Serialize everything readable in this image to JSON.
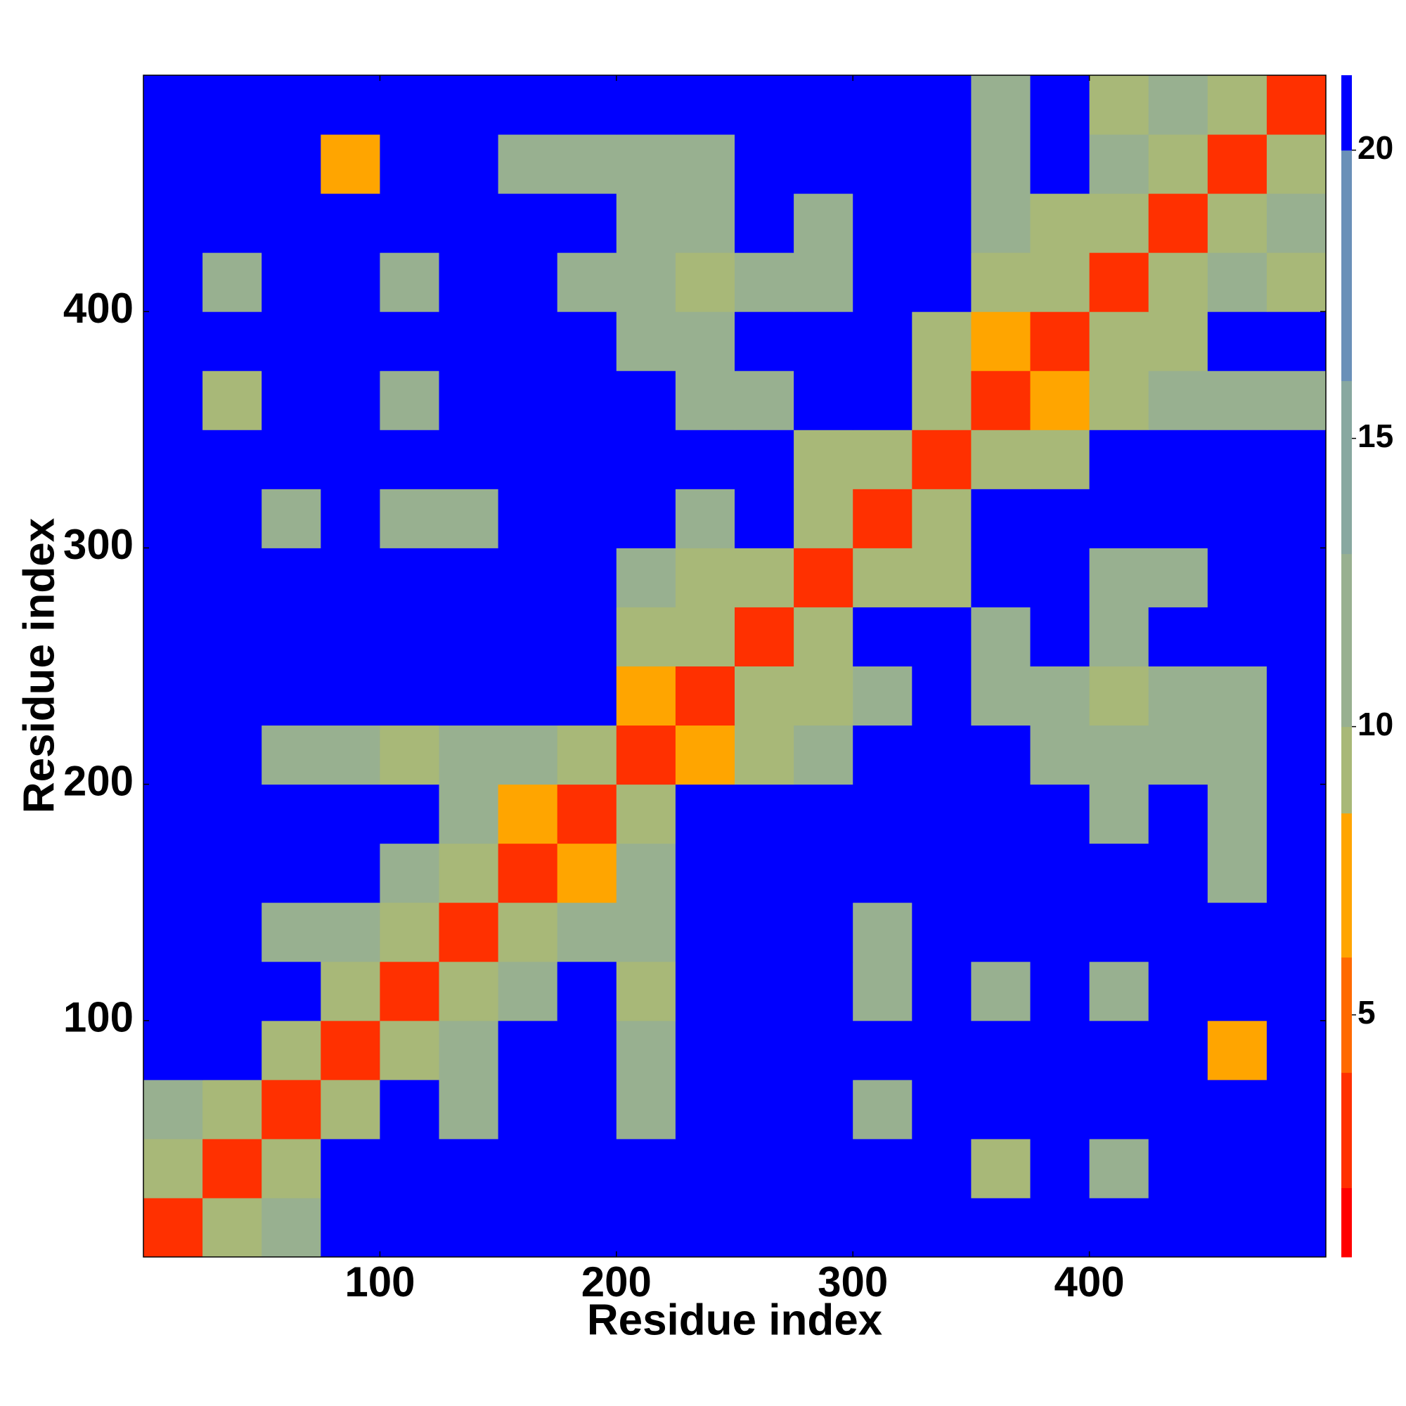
{
  "chart_data": {
    "type": "heatmap",
    "xlabel": "Residue index",
    "ylabel": "Residue index",
    "xlim": [
      0,
      500
    ],
    "ylim": [
      0,
      500
    ],
    "xticks": [
      100,
      200,
      300,
      400
    ],
    "yticks": [
      100,
      200,
      300,
      400
    ],
    "bins": [
      0,
      25,
      50,
      75,
      100,
      125,
      150,
      175,
      200,
      225,
      250,
      275,
      300,
      325,
      350,
      375,
      400,
      425,
      450,
      475,
      500
    ],
    "zlim": [
      0.8,
      21.3
    ],
    "zticks": [
      5,
      10,
      15,
      20
    ],
    "colorscale": [
      [
        2,
        "#ff0000"
      ],
      [
        4,
        "#ff3000"
      ],
      [
        6,
        "#ff6a00"
      ],
      [
        8.5,
        "#ffa500"
      ],
      [
        10,
        "#a8b878"
      ],
      [
        13,
        "#98b090"
      ],
      [
        16,
        "#88a8a0"
      ],
      [
        20,
        "#6a90b8"
      ],
      [
        21.3,
        "#0000ff"
      ]
    ],
    "z": [
      [
        3,
        9,
        12,
        21,
        21,
        21,
        21,
        21,
        21,
        21,
        21,
        21,
        21,
        21,
        21,
        21,
        21,
        21,
        21,
        21
      ],
      [
        9,
        3,
        9,
        21,
        21,
        21,
        21,
        21,
        21,
        21,
        21,
        21,
        21,
        21,
        10,
        21,
        12,
        21,
        21,
        21
      ],
      [
        12,
        9,
        3,
        9,
        21,
        12,
        21,
        21,
        13,
        21,
        21,
        21,
        12,
        21,
        21,
        21,
        21,
        21,
        21,
        21
      ],
      [
        21,
        21,
        9,
        3,
        9,
        11,
        21,
        21,
        12,
        21,
        21,
        21,
        21,
        21,
        21,
        21,
        21,
        21,
        8,
        21
      ],
      [
        21,
        21,
        21,
        9,
        3,
        9,
        12,
        21,
        10,
        21,
        21,
        21,
        13,
        21,
        13,
        21,
        12,
        21,
        21,
        21
      ],
      [
        21,
        21,
        12,
        11,
        9,
        3,
        9,
        12,
        12,
        21,
        21,
        21,
        11,
        21,
        21,
        21,
        21,
        21,
        21,
        21
      ],
      [
        21,
        21,
        21,
        21,
        12,
        9,
        3,
        7,
        12,
        21,
        21,
        21,
        21,
        21,
        21,
        21,
        21,
        21,
        12,
        21
      ],
      [
        21,
        21,
        21,
        21,
        21,
        12,
        7,
        3,
        9,
        21,
        21,
        21,
        21,
        21,
        21,
        21,
        12,
        21,
        13,
        21
      ],
      [
        21,
        21,
        13,
        12,
        10,
        12,
        12,
        9,
        3,
        8,
        9,
        13,
        21,
        21,
        21,
        12,
        11,
        11,
        12,
        21
      ],
      [
        21,
        21,
        21,
        21,
        21,
        21,
        21,
        21,
        8,
        3,
        9,
        10,
        12,
        21,
        11,
        11,
        10,
        11,
        12,
        21
      ],
      [
        21,
        21,
        21,
        21,
        21,
        21,
        21,
        21,
        9,
        9,
        3,
        9,
        21,
        21,
        11,
        21,
        12,
        21,
        21,
        21
      ],
      [
        21,
        21,
        21,
        21,
        21,
        21,
        21,
        21,
        13,
        10,
        9,
        3,
        9,
        10,
        21,
        21,
        12,
        11,
        21,
        21
      ],
      [
        21,
        21,
        12,
        21,
        13,
        11,
        21,
        21,
        21,
        12,
        21,
        9,
        3,
        9,
        21,
        21,
        21,
        21,
        21,
        21
      ],
      [
        21,
        21,
        21,
        21,
        21,
        21,
        21,
        21,
        21,
        21,
        21,
        10,
        9,
        3,
        9,
        10,
        21,
        21,
        21,
        21
      ],
      [
        21,
        10,
        21,
        21,
        13,
        21,
        21,
        21,
        21,
        11,
        11,
        21,
        21,
        9,
        3,
        7,
        10,
        12,
        11,
        12
      ],
      [
        21,
        21,
        21,
        21,
        21,
        21,
        21,
        21,
        12,
        11,
        21,
        21,
        21,
        10,
        7,
        3,
        9,
        10,
        21,
        21
      ],
      [
        21,
        12,
        21,
        21,
        12,
        21,
        21,
        12,
        11,
        10,
        12,
        12,
        21,
        21,
        10,
        9,
        3,
        9,
        11,
        10
      ],
      [
        21,
        21,
        21,
        21,
        21,
        21,
        21,
        21,
        11,
        11,
        21,
        11,
        21,
        21,
        12,
        10,
        9,
        3,
        9,
        11
      ],
      [
        21,
        21,
        21,
        8,
        21,
        21,
        12,
        13,
        12,
        12,
        21,
        21,
        21,
        21,
        11,
        21,
        11,
        9,
        3,
        9
      ],
      [
        21,
        21,
        21,
        21,
        21,
        21,
        21,
        21,
        21,
        21,
        21,
        21,
        21,
        21,
        12,
        21,
        10,
        11,
        9,
        3
      ]
    ]
  }
}
